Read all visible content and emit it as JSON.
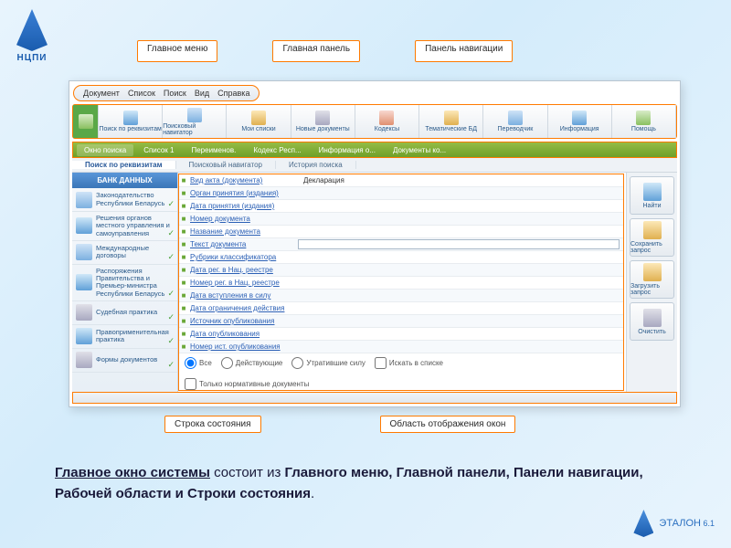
{
  "branding": {
    "top_label": "НЦПИ",
    "bottom_label": "ЭТАЛОН",
    "bottom_ver": "6.1"
  },
  "callouts_top": [
    "Главное меню",
    "Главная панель",
    "Панель навигации"
  ],
  "callouts_bottom": [
    "Строка состояния",
    "Область отображения окон"
  ],
  "menubar": [
    "Документ",
    "Список",
    "Поиск",
    "Вид",
    "Справка"
  ],
  "toolbar": [
    {
      "label": ""
    },
    {
      "label": "Поиск по реквизитам"
    },
    {
      "label": "Поисковый навигатор"
    },
    {
      "label": "Мои списки"
    },
    {
      "label": "Новые документы"
    },
    {
      "label": "Кодексы"
    },
    {
      "label": "Тематические БД"
    },
    {
      "label": "Переводчик"
    },
    {
      "label": "Информация"
    },
    {
      "label": "Помощь"
    }
  ],
  "navtabs": [
    "Окно поиска",
    "Список 1",
    "Переименов.",
    "Кодекс Респ...",
    "Информация о...",
    "Документы ко..."
  ],
  "subtabs": [
    "Поиск по реквизитам",
    "Поисковый навигатор",
    "История поиска"
  ],
  "sidebar": {
    "header": "БАНК ДАННЫХ",
    "items": [
      {
        "label": "Законодательство Республики Беларусь",
        "cls": "c1"
      },
      {
        "label": "Решения органов местного управления и самоуправления",
        "cls": "c5"
      },
      {
        "label": "Международные договоры",
        "cls": "c1"
      },
      {
        "label": "Распоряжения Правительства и Премьер-министра Республики Беларусь",
        "cls": "c5"
      },
      {
        "label": "Судебная практика",
        "cls": "c4"
      },
      {
        "label": "Правоприменительная практика",
        "cls": "c5"
      },
      {
        "label": "Формы документов",
        "cls": "c4"
      }
    ]
  },
  "form_rows": [
    {
      "label": "Вид акта (документа)",
      "val": "Декларация"
    },
    {
      "label": "Орган принятия (издания)",
      "val": ""
    },
    {
      "label": "Дата принятия (издания)",
      "val": ""
    },
    {
      "label": "Номер документа",
      "val": ""
    },
    {
      "label": "Название документа",
      "val": ""
    },
    {
      "label": "Текст документа",
      "val": "",
      "input": true
    },
    {
      "label": "Рубрики классификатора",
      "val": ""
    },
    {
      "label": "Дата рег. в Нац. реестре",
      "val": ""
    },
    {
      "label": "Номер рег. в Нац. реестре",
      "val": ""
    },
    {
      "label": "Дата вступления в силу",
      "val": ""
    },
    {
      "label": "Дата ограничения действия",
      "val": ""
    },
    {
      "label": "Источник опубликования",
      "val": ""
    },
    {
      "label": "Дата опубликования",
      "val": ""
    },
    {
      "label": "Номер ист. опубликования",
      "val": ""
    }
  ],
  "form_footer": {
    "radios": [
      "Все",
      "Действующие",
      "Утратившие силу"
    ],
    "checks": [
      "Искать в списке",
      "Только нормативные документы"
    ]
  },
  "sidebuttons": [
    {
      "label": "Найти",
      "cls": "c5"
    },
    {
      "label": "Сохранить запрос",
      "cls": "c2"
    },
    {
      "label": "Загрузить запрос",
      "cls": "c2"
    },
    {
      "label": "Очистить",
      "cls": "c4"
    }
  ],
  "statusbar": "",
  "caption": {
    "pre": "Главное окно системы",
    "mid": " состоит из ",
    "bold": "Главного меню, Главной панели, Панели навигации, Рабочей области и Строки состояния",
    "end": "."
  },
  "colors": {
    "accent": "#ff7a00",
    "link": "#2a5fb5",
    "green": "#6fa028"
  }
}
